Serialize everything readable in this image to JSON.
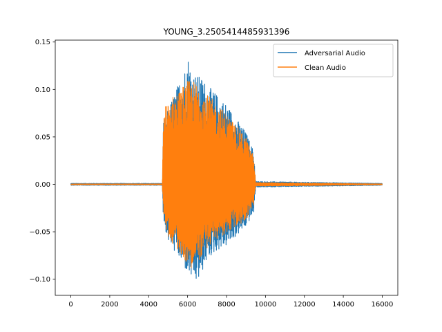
{
  "chart_data": {
    "type": "line",
    "title": "YOUNG_3.2505414485931396",
    "xlabel": "",
    "ylabel": "",
    "xlim": [
      -800,
      16800
    ],
    "ylim": [
      -0.117,
      0.152
    ],
    "x_ticks": [
      0,
      2000,
      4000,
      6000,
      8000,
      10000,
      12000,
      14000,
      16000
    ],
    "x_tick_labels": [
      "0",
      "2000",
      "4000",
      "6000",
      "8000",
      "10000",
      "12000",
      "14000",
      "16000"
    ],
    "y_ticks": [
      -0.1,
      -0.05,
      0.0,
      0.05,
      0.1,
      0.15
    ],
    "y_tick_labels": [
      "−0.10",
      "−0.05",
      "0.00",
      "0.05",
      "0.10",
      "0.15"
    ],
    "grid": false,
    "legend_position": "top-right",
    "sample_count": 16000,
    "series": [
      {
        "name": "Adversarial Audio",
        "color": "#1f77b4",
        "envelope_upper": [
          [
            0,
            0.001
          ],
          [
            4700,
            0.001
          ],
          [
            4760,
            0.065
          ],
          [
            5000,
            0.08
          ],
          [
            5300,
            0.095
          ],
          [
            5600,
            0.11
          ],
          [
            5900,
            0.125
          ],
          [
            6000,
            0.138
          ],
          [
            6200,
            0.12
          ],
          [
            6500,
            0.115
          ],
          [
            6800,
            0.112
          ],
          [
            7000,
            0.105
          ],
          [
            7500,
            0.095
          ],
          [
            8000,
            0.085
          ],
          [
            8500,
            0.07
          ],
          [
            9000,
            0.055
          ],
          [
            9400,
            0.035
          ],
          [
            9500,
            0.003
          ],
          [
            16000,
            0.001
          ]
        ],
        "envelope_lower": [
          [
            0,
            -0.001
          ],
          [
            4700,
            -0.001
          ],
          [
            4760,
            -0.04
          ],
          [
            5000,
            -0.06
          ],
          [
            5300,
            -0.07
          ],
          [
            5600,
            -0.08
          ],
          [
            6000,
            -0.095
          ],
          [
            6200,
            -0.1
          ],
          [
            6500,
            -0.105
          ],
          [
            6800,
            -0.09
          ],
          [
            7000,
            -0.08
          ],
          [
            7500,
            -0.07
          ],
          [
            8000,
            -0.065
          ],
          [
            8500,
            -0.055
          ],
          [
            9000,
            -0.045
          ],
          [
            9400,
            -0.03
          ],
          [
            9500,
            -0.003
          ],
          [
            16000,
            -0.001
          ]
        ]
      },
      {
        "name": "Clean Audio",
        "color": "#ff7f0e",
        "envelope_upper": [
          [
            0,
            0.0005
          ],
          [
            4700,
            0.0005
          ],
          [
            4760,
            0.08
          ],
          [
            5000,
            0.088
          ],
          [
            5300,
            0.095
          ],
          [
            5600,
            0.1
          ],
          [
            5900,
            0.108
          ],
          [
            6100,
            0.11
          ],
          [
            6500,
            0.108
          ],
          [
            7000,
            0.095
          ],
          [
            7500,
            0.085
          ],
          [
            8000,
            0.075
          ],
          [
            8500,
            0.062
          ],
          [
            9000,
            0.05
          ],
          [
            9400,
            0.03
          ],
          [
            9500,
            0.002
          ],
          [
            16000,
            0.0005
          ]
        ],
        "envelope_lower": [
          [
            0,
            -0.0005
          ],
          [
            4700,
            -0.0005
          ],
          [
            4760,
            -0.035
          ],
          [
            5000,
            -0.055
          ],
          [
            5300,
            -0.065
          ],
          [
            5600,
            -0.072
          ],
          [
            6000,
            -0.085
          ],
          [
            6300,
            -0.09
          ],
          [
            6600,
            -0.08
          ],
          [
            7000,
            -0.068
          ],
          [
            7500,
            -0.058
          ],
          [
            8000,
            -0.052
          ],
          [
            8500,
            -0.045
          ],
          [
            9000,
            -0.038
          ],
          [
            9400,
            -0.022
          ],
          [
            9500,
            -0.002
          ],
          [
            16000,
            -0.0005
          ]
        ]
      }
    ]
  }
}
